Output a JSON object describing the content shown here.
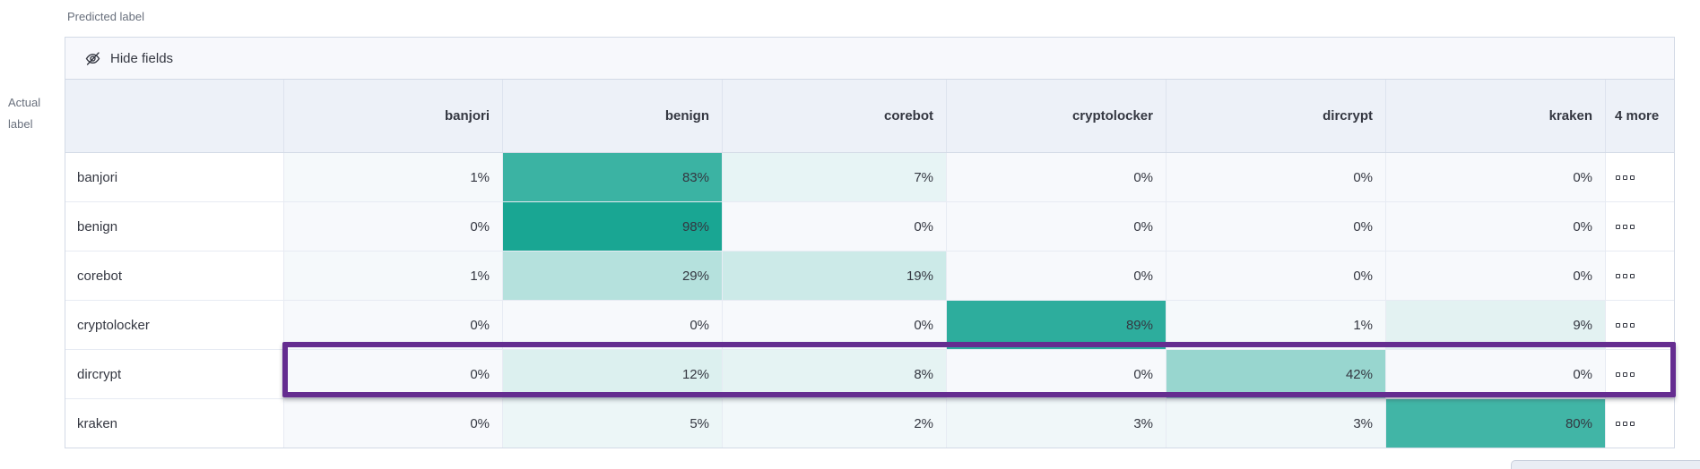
{
  "axis": {
    "predicted_label": "Predicted label",
    "actual_label": "Actual label"
  },
  "toolbar": {
    "hide_fields_label": "Hide fields"
  },
  "icons": {
    "hide_fields": "eye-closed-icon",
    "row_actions": "boxes-horizontal-icon"
  },
  "chart_data": {
    "type": "heatmap",
    "x_axis_label": "Predicted label",
    "y_axis_label": "Actual label",
    "categories": [
      "banjori",
      "benign",
      "corebot",
      "cryptolocker",
      "dircrypt",
      "kraken"
    ],
    "more_columns_label": "4 more",
    "value_suffix": "%",
    "rows": [
      {
        "label": "banjori",
        "values": [
          1,
          83,
          7,
          0,
          0,
          0
        ]
      },
      {
        "label": "benign",
        "values": [
          0,
          98,
          0,
          0,
          0,
          0
        ]
      },
      {
        "label": "corebot",
        "values": [
          1,
          29,
          19,
          0,
          0,
          0
        ]
      },
      {
        "label": "cryptolocker",
        "values": [
          0,
          0,
          0,
          89,
          1,
          9
        ]
      },
      {
        "label": "dircrypt",
        "values": [
          0,
          12,
          8,
          0,
          42,
          0
        ],
        "highlighted": true
      },
      {
        "label": "kraken",
        "values": [
          0,
          5,
          2,
          3,
          3,
          80
        ]
      }
    ],
    "heatmap_colors": {
      "zero": "#f7f9fc",
      "min": "#f7fafc",
      "max": "#14a491"
    },
    "highlight_color": "#652d90"
  }
}
